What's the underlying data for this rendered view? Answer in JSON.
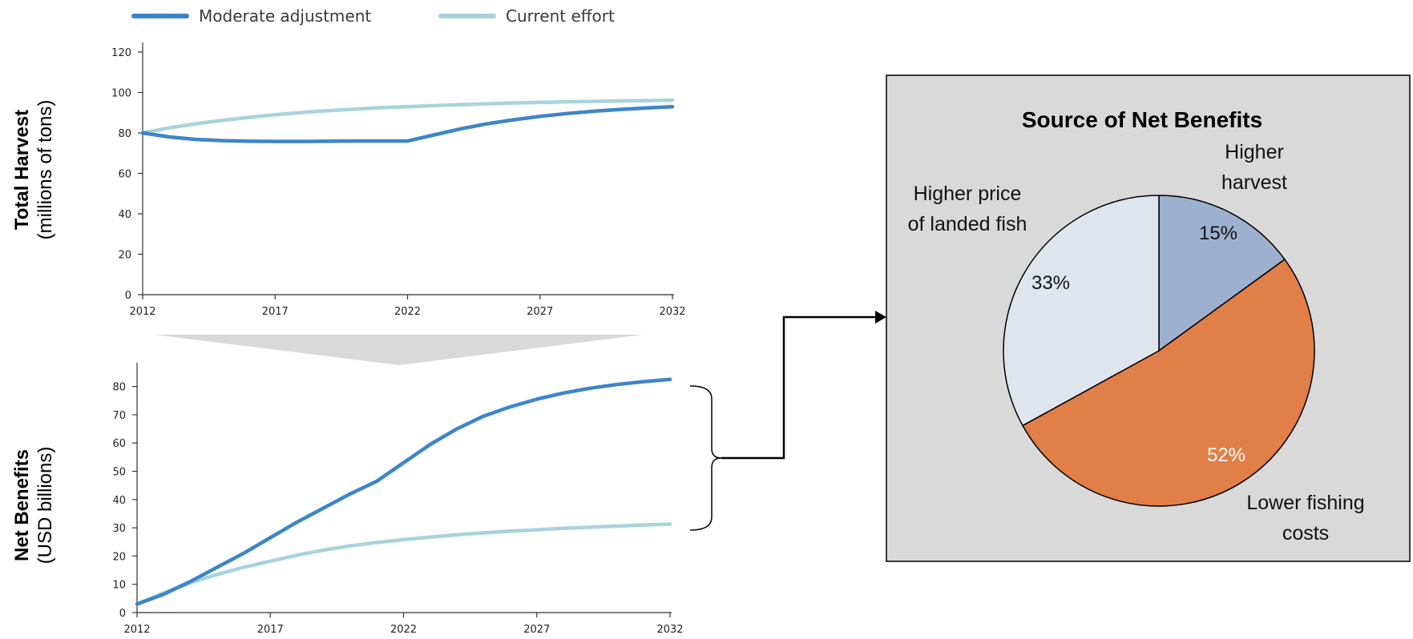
{
  "legend": {
    "items": [
      {
        "label": "Moderate adjustment",
        "color": "#3d85c6"
      },
      {
        "label": "Current effort",
        "color": "#a9d3dc"
      }
    ]
  },
  "chart_data": [
    {
      "type": "line",
      "ylabel_bold": "Total Harvest",
      "ylabel_sub": "(millions of tons)",
      "x": [
        2012,
        2013,
        2014,
        2015,
        2016,
        2017,
        2018,
        2019,
        2020,
        2021,
        2022,
        2023,
        2024,
        2025,
        2026,
        2027,
        2028,
        2029,
        2030,
        2031,
        2032
      ],
      "xticks": [
        2012,
        2017,
        2022,
        2027,
        2032
      ],
      "yticks": [
        0,
        20,
        40,
        60,
        80,
        100,
        120
      ],
      "xlim": [
        2012,
        2032
      ],
      "ylim": [
        0,
        120
      ],
      "series": [
        {
          "name": "Moderate adjustment",
          "color": "#3d85c6",
          "values": [
            80,
            78,
            76.8,
            76.2,
            75.9,
            75.8,
            75.8,
            75.9,
            76,
            76,
            76,
            79,
            82,
            84.5,
            86.5,
            88.2,
            89.6,
            90.7,
            91.6,
            92.3,
            93
          ]
        },
        {
          "name": "Current effort",
          "color": "#a9d3dc",
          "values": [
            80,
            82.5,
            84.5,
            86.2,
            87.7,
            89,
            90.1,
            91,
            91.8,
            92.5,
            93,
            93.5,
            94,
            94.4,
            94.8,
            95.1,
            95.4,
            95.6,
            95.8,
            96,
            96.2
          ]
        }
      ]
    },
    {
      "type": "line",
      "ylabel_bold": "Net Benefits",
      "ylabel_sub": "(USD billions)",
      "x": [
        2012,
        2013,
        2014,
        2015,
        2016,
        2017,
        2018,
        2019,
        2020,
        2021,
        2022,
        2023,
        2024,
        2025,
        2026,
        2027,
        2028,
        2029,
        2030,
        2031,
        2032
      ],
      "xticks": [
        2012,
        2017,
        2022,
        2027,
        2032
      ],
      "yticks": [
        0,
        10,
        20,
        30,
        40,
        50,
        60,
        70,
        80
      ],
      "xlim": [
        2012,
        2032
      ],
      "ylim": [
        0,
        85
      ],
      "series": [
        {
          "name": "Moderate adjustment",
          "color": "#3d85c6",
          "values": [
            3,
            6.5,
            11,
            16,
            21,
            26.5,
            32,
            37,
            42,
            46.5,
            53,
            59.5,
            65,
            69.5,
            72.8,
            75.5,
            77.7,
            79.4,
            80.7,
            81.7,
            82.5
          ]
        },
        {
          "name": "Current effort",
          "color": "#a9d3dc",
          "values": [
            3,
            7,
            10.5,
            13.5,
            16,
            18.2,
            20.3,
            22.1,
            23.6,
            24.8,
            25.8,
            26.7,
            27.5,
            28.2,
            28.8,
            29.3,
            29.8,
            30.2,
            30.6,
            31,
            31.3
          ]
        }
      ]
    },
    {
      "type": "pie",
      "title": "Source of Net Benefits",
      "slices": [
        {
          "label_lines": [
            "Higher",
            "harvest"
          ],
          "value": 15,
          "pct_label": "15%",
          "color": "#9db0cf",
          "pct_color": "#111111"
        },
        {
          "label_lines": [
            "Lower fishing",
            "costs"
          ],
          "value": 52,
          "pct_label": "52%",
          "color": "#e07f47",
          "pct_color": "#ffffff"
        },
        {
          "label_lines": [
            "Higher price",
            "of landed fish"
          ],
          "value": 33,
          "pct_label": "33%",
          "color": "#dfe5ef",
          "pct_color": "#111111"
        }
      ]
    }
  ]
}
